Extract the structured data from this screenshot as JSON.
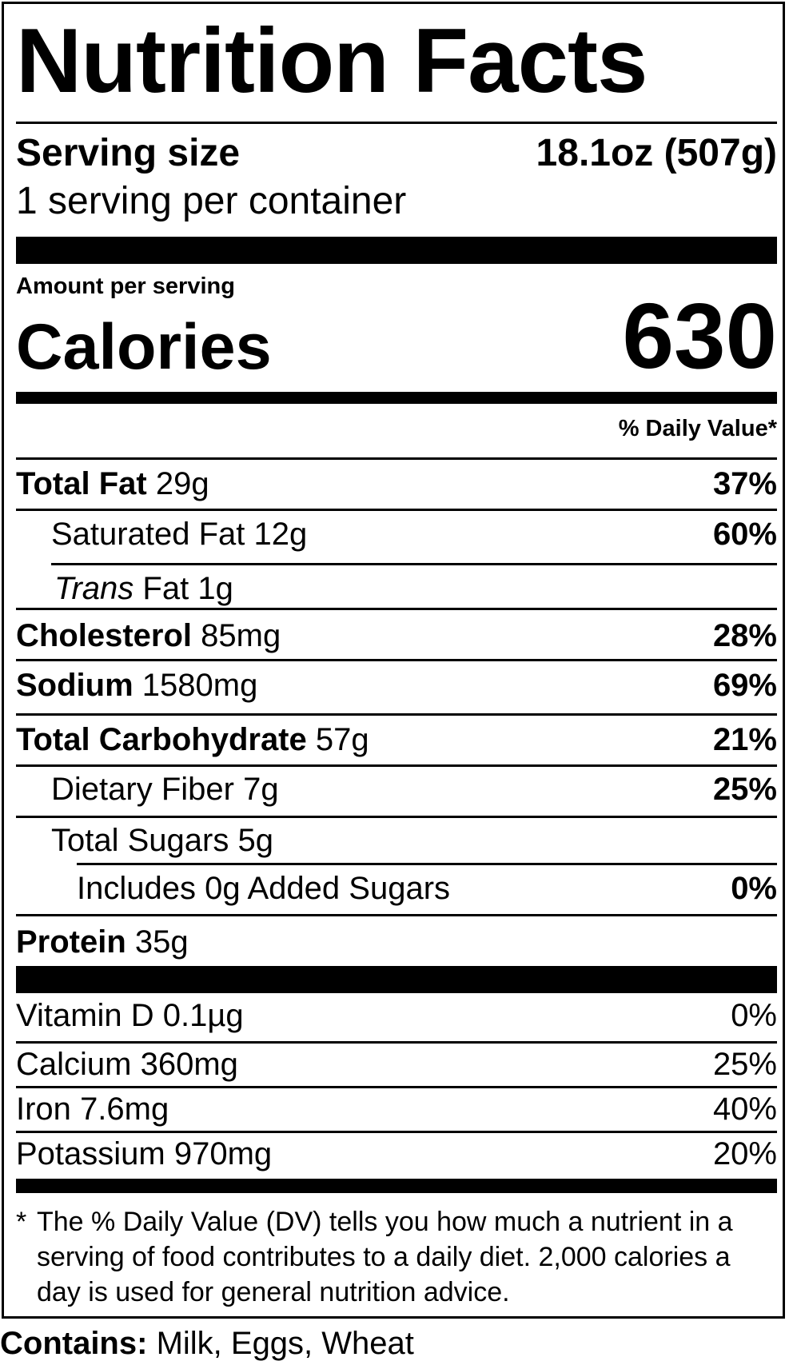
{
  "title": "Nutrition Facts",
  "serving": {
    "size_label": "Serving size",
    "size_value": "18.1oz (507g)",
    "per_container": "1 serving per container"
  },
  "calories": {
    "amount_label": "Amount per serving",
    "label": "Calories",
    "value": "630"
  },
  "daily_value_header": "% Daily Value*",
  "nutrients": [
    {
      "name": "Total Fat",
      "amount": "29g",
      "dv": "37%"
    },
    {
      "name": "Saturated Fat",
      "amount": "12g",
      "dv": "60%"
    },
    {
      "name_italic": "Trans",
      "name": "Fat",
      "amount": "1g",
      "dv": ""
    },
    {
      "name": "Cholesterol",
      "amount": "85mg",
      "dv": "28%"
    },
    {
      "name": "Sodium",
      "amount": "1580mg",
      "dv": "69%"
    },
    {
      "name": "Total Carbohydrate",
      "amount": "57g",
      "dv": "21%"
    },
    {
      "name": "Dietary Fiber",
      "amount": "7g",
      "dv": "25%"
    },
    {
      "name": "Total Sugars",
      "amount": "5g",
      "dv": ""
    },
    {
      "name": "Includes 0g Added Sugars",
      "amount": "",
      "dv": "0%"
    },
    {
      "name": "Protein",
      "amount": "35g",
      "dv": ""
    }
  ],
  "vitamins": [
    {
      "name": "Vitamin D",
      "amount": "0.1µg",
      "dv": "0%"
    },
    {
      "name": "Calcium",
      "amount": "360mg",
      "dv": "25%"
    },
    {
      "name": "Iron",
      "amount": "7.6mg",
      "dv": "40%"
    },
    {
      "name": "Potassium",
      "amount": "970mg",
      "dv": "20%"
    }
  ],
  "footnote": {
    "star": "*",
    "text": "The % Daily Value (DV) tells you how much a nutrient in a serving of food contributes to a daily diet. 2,000 calories a day is used for general nutrition advice."
  },
  "contains": {
    "label": "Contains:",
    "value": "Milk, Eggs, Wheat"
  }
}
